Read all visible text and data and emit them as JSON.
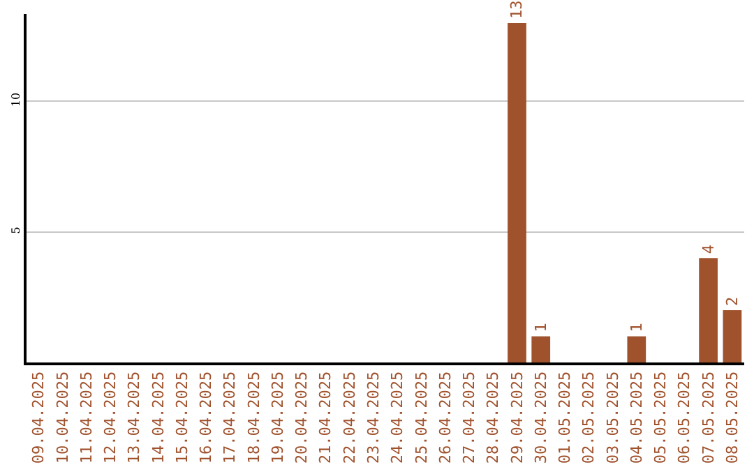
{
  "chart_data": {
    "type": "bar",
    "categories": [
      "09.04.2025",
      "10.04.2025",
      "11.04.2025",
      "12.04.2025",
      "13.04.2025",
      "14.04.2025",
      "15.04.2025",
      "16.04.2025",
      "17.04.2025",
      "18.04.2025",
      "19.04.2025",
      "20.04.2025",
      "21.04.2025",
      "22.04.2025",
      "23.04.2025",
      "24.04.2025",
      "25.04.2025",
      "26.04.2025",
      "27.04.2025",
      "28.04.2025",
      "29.04.2025",
      "30.04.2025",
      "01.05.2025",
      "02.05.2025",
      "03.05.2025",
      "04.05.2025",
      "05.05.2025",
      "06.05.2025",
      "07.05.2025",
      "08.05.2025"
    ],
    "values": [
      0,
      0,
      0,
      0,
      0,
      0,
      0,
      0,
      0,
      0,
      0,
      0,
      0,
      0,
      0,
      0,
      0,
      0,
      0,
      0,
      13,
      1,
      0,
      0,
      0,
      1,
      0,
      0,
      4,
      2
    ],
    "value_labels": [
      null,
      null,
      null,
      null,
      null,
      null,
      null,
      null,
      null,
      null,
      null,
      null,
      null,
      null,
      null,
      null,
      null,
      null,
      null,
      null,
      "13",
      "1",
      null,
      null,
      null,
      "1",
      null,
      null,
      "4",
      "2"
    ],
    "color": "#a0522d",
    "ylim": [
      0,
      13.35
    ],
    "yticks": [
      5,
      10
    ],
    "grid": "y",
    "legend": false
  }
}
